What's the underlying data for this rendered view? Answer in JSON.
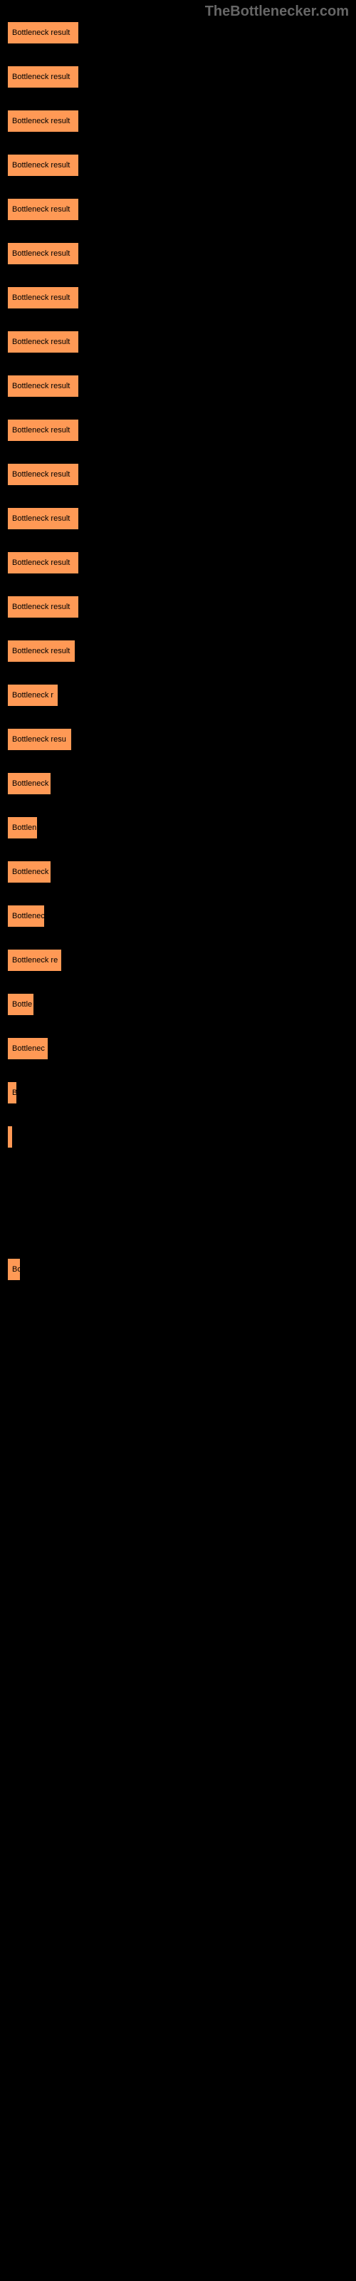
{
  "watermark": "TheBottlenecker.com",
  "chart": {
    "type": "bar",
    "bar_color": "#ff9955",
    "bar_border_color": "#000000",
    "background_color": "#000000",
    "text_color": "#000000",
    "label_fontsize": 11,
    "max_width": 480,
    "bars": [
      {
        "label": "Bottleneck result",
        "width_pct": 21
      },
      {
        "label": "Bottleneck result",
        "width_pct": 21
      },
      {
        "label": "Bottleneck result",
        "width_pct": 21
      },
      {
        "label": "Bottleneck result",
        "width_pct": 21
      },
      {
        "label": "Bottleneck result",
        "width_pct": 21
      },
      {
        "label": "Bottleneck result",
        "width_pct": 21
      },
      {
        "label": "Bottleneck result",
        "width_pct": 21
      },
      {
        "label": "Bottleneck result",
        "width_pct": 21
      },
      {
        "label": "Bottleneck result",
        "width_pct": 21
      },
      {
        "label": "Bottleneck result",
        "width_pct": 21
      },
      {
        "label": "Bottleneck result",
        "width_pct": 21
      },
      {
        "label": "Bottleneck result",
        "width_pct": 21
      },
      {
        "label": "Bottleneck result",
        "width_pct": 21
      },
      {
        "label": "Bottleneck result",
        "width_pct": 21
      },
      {
        "label": "Bottleneck result",
        "width_pct": 20
      },
      {
        "label": "Bottleneck r",
        "width_pct": 15
      },
      {
        "label": "Bottleneck resu",
        "width_pct": 19
      },
      {
        "label": "Bottleneck",
        "width_pct": 13
      },
      {
        "label": "Bottlen",
        "width_pct": 9
      },
      {
        "label": "Bottleneck",
        "width_pct": 13
      },
      {
        "label": "Bottlenec",
        "width_pct": 11
      },
      {
        "label": "Bottleneck re",
        "width_pct": 16
      },
      {
        "label": "Bottle",
        "width_pct": 8
      },
      {
        "label": "Bottlenec",
        "width_pct": 12
      },
      {
        "label": "B",
        "width_pct": 3
      },
      {
        "label": "",
        "width_pct": 1
      },
      {
        "label": "",
        "width_pct": 0
      },
      {
        "label": "",
        "width_pct": 0
      },
      {
        "label": "Bo",
        "width_pct": 4
      },
      {
        "label": "",
        "width_pct": 0
      },
      {
        "label": "",
        "width_pct": 0
      },
      {
        "label": "",
        "width_pct": 0
      },
      {
        "label": "",
        "width_pct": 0
      },
      {
        "label": "",
        "width_pct": 0
      },
      {
        "label": "",
        "width_pct": 0
      },
      {
        "label": "",
        "width_pct": 0
      },
      {
        "label": "",
        "width_pct": 0
      },
      {
        "label": "",
        "width_pct": 0
      },
      {
        "label": "",
        "width_pct": 0
      },
      {
        "label": "",
        "width_pct": 0
      },
      {
        "label": "",
        "width_pct": 0
      },
      {
        "label": "",
        "width_pct": 0
      },
      {
        "label": "",
        "width_pct": 0
      },
      {
        "label": "",
        "width_pct": 0
      },
      {
        "label": "",
        "width_pct": 0
      },
      {
        "label": "",
        "width_pct": 0
      },
      {
        "label": "",
        "width_pct": 0
      },
      {
        "label": "",
        "width_pct": 0
      },
      {
        "label": "",
        "width_pct": 0
      },
      {
        "label": "",
        "width_pct": 0
      },
      {
        "label": "",
        "width_pct": 0
      }
    ]
  }
}
